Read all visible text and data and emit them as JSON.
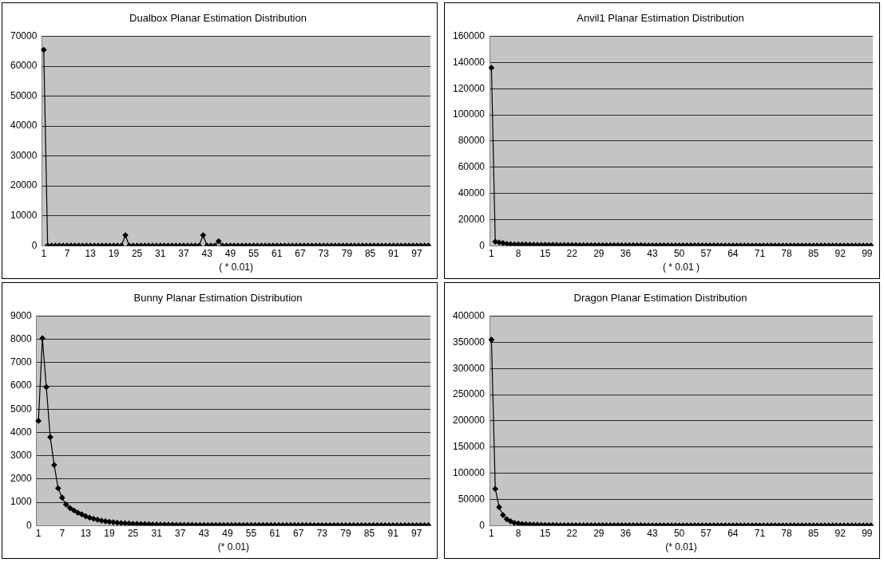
{
  "chart_data": [
    {
      "type": "line",
      "title": "Dualbox Planar Estimation Distribution",
      "xlabel": "( * 0.01)",
      "categories": [
        "1",
        null,
        null,
        null,
        null,
        null,
        "7",
        null,
        null,
        null,
        null,
        null,
        "13",
        null,
        null,
        null,
        null,
        null,
        "19",
        null,
        null,
        null,
        null,
        null,
        "25",
        null,
        null,
        null,
        null,
        null,
        "31",
        null,
        null,
        null,
        null,
        null,
        "37",
        null,
        null,
        null,
        null,
        null,
        "43",
        null,
        null,
        null,
        null,
        null,
        "49",
        null,
        null,
        null,
        null,
        null,
        "55",
        null,
        null,
        null,
        null,
        null,
        "61",
        null,
        null,
        null,
        null,
        null,
        "67",
        null,
        null,
        null,
        null,
        null,
        "73",
        null,
        null,
        null,
        null,
        null,
        "79",
        null,
        null,
        null,
        null,
        null,
        "85",
        null,
        null,
        null,
        null,
        null,
        "91",
        null,
        null,
        null,
        null,
        null,
        "97",
        null,
        null,
        null
      ],
      "series": [
        {
          "color": "#000000",
          "values": [
            65500,
            0,
            0,
            0,
            0,
            0,
            0,
            0,
            0,
            0,
            0,
            0,
            0,
            0,
            0,
            0,
            0,
            0,
            0,
            0,
            0,
            3500,
            0,
            0,
            0,
            0,
            0,
            0,
            0,
            0,
            0,
            0,
            0,
            0,
            0,
            0,
            0,
            0,
            0,
            0,
            0,
            3500,
            0,
            0,
            0,
            1500,
            0,
            0,
            0,
            0,
            0,
            0,
            0,
            0,
            0,
            0,
            0,
            0,
            0,
            0,
            0,
            0,
            0,
            0,
            0,
            0,
            0,
            0,
            0,
            0,
            0,
            0,
            0,
            0,
            0,
            0,
            0,
            0,
            0,
            0,
            0,
            0,
            0,
            0,
            0,
            0,
            0,
            0,
            0,
            0,
            0,
            0,
            0,
            0,
            0,
            0,
            0,
            0,
            0,
            0
          ]
        }
      ],
      "ylim": [
        0,
        70000
      ],
      "yticks": [
        0,
        10000,
        20000,
        30000,
        40000,
        50000,
        60000,
        70000
      ],
      "grid": "y",
      "legend": false,
      "marker": "diamond",
      "line_style": "solid"
    },
    {
      "type": "line",
      "title": "Anvil1 Planar Estimation Distribution",
      "xlabel": "( * 0.01 )",
      "categories": [
        "1",
        null,
        null,
        null,
        null,
        null,
        null,
        "8",
        null,
        null,
        null,
        null,
        null,
        null,
        "15",
        null,
        null,
        null,
        null,
        null,
        null,
        "22",
        null,
        null,
        null,
        null,
        null,
        null,
        "29",
        null,
        null,
        null,
        null,
        null,
        null,
        "36",
        null,
        null,
        null,
        null,
        null,
        null,
        "43",
        null,
        null,
        null,
        null,
        null,
        null,
        "50",
        null,
        null,
        null,
        null,
        null,
        null,
        "57",
        null,
        null,
        null,
        null,
        null,
        null,
        "64",
        null,
        null,
        null,
        null,
        null,
        null,
        "71",
        null,
        null,
        null,
        null,
        null,
        null,
        "78",
        null,
        null,
        null,
        null,
        null,
        null,
        "85",
        null,
        null,
        null,
        null,
        null,
        null,
        "92",
        null,
        null,
        null,
        null,
        null,
        null,
        "99",
        null
      ],
      "series": [
        {
          "color": "#000000",
          "values": [
            136000,
            3000,
            2500,
            2000,
            1500,
            1200,
            1000,
            1000,
            900,
            900,
            800,
            800,
            700,
            700,
            700,
            600,
            600,
            600,
            500,
            500,
            500,
            500,
            500,
            400,
            400,
            400,
            400,
            400,
            300,
            300,
            300,
            300,
            300,
            300,
            300,
            300,
            300,
            300,
            300,
            300,
            200,
            200,
            200,
            200,
            200,
            200,
            200,
            200,
            200,
            200,
            200,
            200,
            200,
            200,
            200,
            200,
            200,
            200,
            200,
            200,
            100,
            100,
            100,
            100,
            100,
            100,
            100,
            100,
            100,
            100,
            100,
            100,
            100,
            100,
            100,
            100,
            100,
            100,
            100,
            100,
            100,
            100,
            100,
            100,
            100,
            100,
            100,
            100,
            100,
            100,
            100,
            100,
            100,
            100,
            100,
            100,
            100,
            100,
            100,
            100
          ]
        }
      ],
      "ylim": [
        0,
        160000
      ],
      "yticks": [
        0,
        20000,
        40000,
        60000,
        80000,
        100000,
        120000,
        140000,
        160000
      ],
      "grid": "y",
      "legend": false,
      "marker": "diamond",
      "line_style": "solid"
    },
    {
      "type": "line",
      "title": "Bunny Planar Estimation Distribution",
      "xlabel": "(* 0.01)",
      "categories": [
        "1",
        null,
        null,
        null,
        null,
        null,
        "7",
        null,
        null,
        null,
        null,
        null,
        "13",
        null,
        null,
        null,
        null,
        null,
        "19",
        null,
        null,
        null,
        null,
        null,
        "25",
        null,
        null,
        null,
        null,
        null,
        "31",
        null,
        null,
        null,
        null,
        null,
        "37",
        null,
        null,
        null,
        null,
        null,
        "43",
        null,
        null,
        null,
        null,
        null,
        "49",
        null,
        null,
        null,
        null,
        null,
        "55",
        null,
        null,
        null,
        null,
        null,
        "61",
        null,
        null,
        null,
        null,
        null,
        "67",
        null,
        null,
        null,
        null,
        null,
        "73",
        null,
        null,
        null,
        null,
        null,
        "79",
        null,
        null,
        null,
        null,
        null,
        "85",
        null,
        null,
        null,
        null,
        null,
        "91",
        null,
        null,
        null,
        null,
        null,
        "97",
        null,
        null,
        null
      ],
      "series": [
        {
          "color": "#000000",
          "values": [
            4500,
            8050,
            5950,
            3800,
            2600,
            1600,
            1200,
            900,
            750,
            650,
            550,
            480,
            400,
            340,
            290,
            250,
            210,
            180,
            160,
            140,
            120,
            105,
            95,
            85,
            75,
            70,
            65,
            60,
            55,
            50,
            45,
            42,
            40,
            37,
            35,
            32,
            30,
            28,
            26,
            25,
            22,
            22,
            22,
            22,
            22,
            22,
            22,
            22,
            22,
            22,
            20,
            20,
            20,
            20,
            20,
            20,
            20,
            20,
            20,
            20,
            18,
            18,
            18,
            18,
            18,
            18,
            18,
            18,
            18,
            18,
            15,
            15,
            15,
            15,
            15,
            15,
            15,
            15,
            15,
            15,
            12,
            12,
            12,
            12,
            12,
            12,
            12,
            12,
            12,
            12,
            10,
            10,
            10,
            10,
            10,
            10,
            10,
            10,
            10,
            10
          ]
        }
      ],
      "ylim": [
        0,
        9000
      ],
      "yticks": [
        0,
        1000,
        2000,
        3000,
        4000,
        5000,
        6000,
        7000,
        8000,
        9000
      ],
      "grid": "y",
      "legend": false,
      "marker": "diamond",
      "line_style": "solid"
    },
    {
      "type": "line",
      "title": "Dragon Planar Estimation Distribution",
      "xlabel": "(* 0.01)",
      "categories": [
        "1",
        null,
        null,
        null,
        null,
        null,
        null,
        "8",
        null,
        null,
        null,
        null,
        null,
        null,
        "15",
        null,
        null,
        null,
        null,
        null,
        null,
        "22",
        null,
        null,
        null,
        null,
        null,
        null,
        "29",
        null,
        null,
        null,
        null,
        null,
        null,
        "36",
        null,
        null,
        null,
        null,
        null,
        null,
        "43",
        null,
        null,
        null,
        null,
        null,
        null,
        "50",
        null,
        null,
        null,
        null,
        null,
        null,
        "57",
        null,
        null,
        null,
        null,
        null,
        null,
        "64",
        null,
        null,
        null,
        null,
        null,
        null,
        "71",
        null,
        null,
        null,
        null,
        null,
        null,
        "78",
        null,
        null,
        null,
        null,
        null,
        null,
        "85",
        null,
        null,
        null,
        null,
        null,
        null,
        "92",
        null,
        null,
        null,
        null,
        null,
        null,
        "99",
        null
      ],
      "series": [
        {
          "color": "#000000",
          "values": [
            355000,
            70000,
            35000,
            20000,
            12000,
            8000,
            5000,
            4000,
            3000,
            2500,
            2000,
            1800,
            1500,
            1300,
            1100,
            1000,
            900,
            800,
            700,
            600,
            500,
            500,
            500,
            500,
            500,
            500,
            500,
            500,
            500,
            500,
            400,
            400,
            400,
            400,
            400,
            400,
            400,
            400,
            400,
            400,
            300,
            300,
            300,
            300,
            300,
            300,
            300,
            300,
            300,
            300,
            300,
            300,
            300,
            300,
            300,
            300,
            300,
            300,
            300,
            300,
            200,
            200,
            200,
            200,
            200,
            200,
            200,
            200,
            200,
            200,
            200,
            200,
            200,
            200,
            200,
            200,
            200,
            200,
            200,
            200,
            100,
            100,
            100,
            100,
            100,
            100,
            100,
            100,
            100,
            100,
            100,
            100,
            100,
            100,
            100,
            100,
            100,
            100,
            100,
            100
          ]
        }
      ],
      "ylim": [
        0,
        400000
      ],
      "yticks": [
        0,
        50000,
        100000,
        150000,
        200000,
        250000,
        300000,
        350000,
        400000
      ],
      "grid": "y",
      "legend": false,
      "marker": "diamond",
      "line_style": "solid"
    }
  ]
}
